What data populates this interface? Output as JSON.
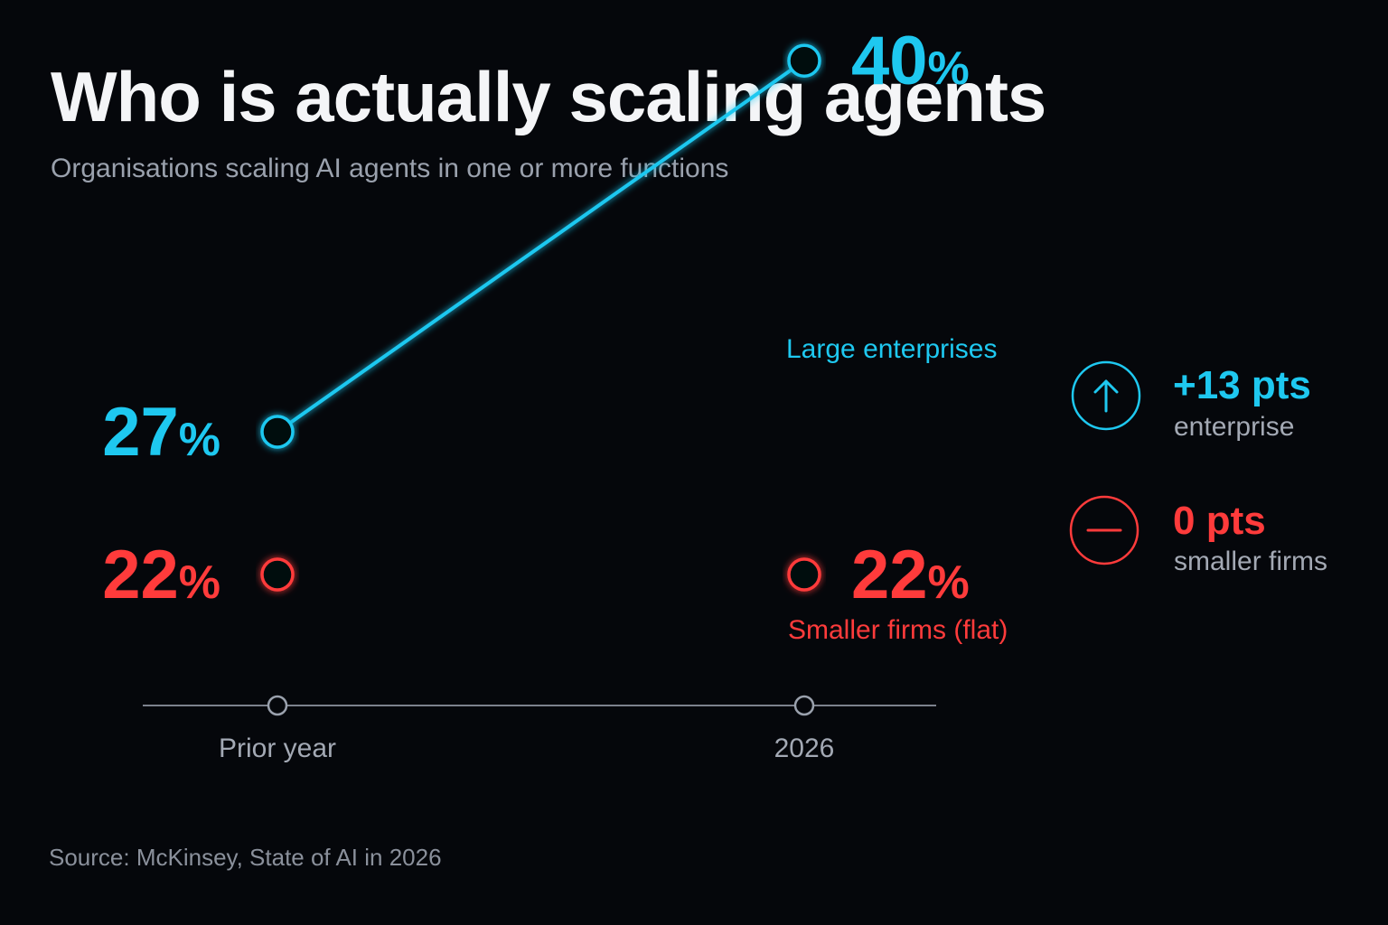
{
  "title": "Who is actually scaling agents",
  "subtitle": "Organisations scaling AI agents in one or more functions",
  "source": "Source: McKinsey, State of AI in 2026",
  "colors": {
    "enterprise": "#1ec8f0",
    "smaller": "#ff3b3b",
    "axis": "#8a909b",
    "text": "#f4f5f7",
    "muted": "#a3a9b4"
  },
  "chart_data": {
    "type": "line",
    "x": [
      "Prior year",
      "2026"
    ],
    "unit": "%",
    "series": [
      {
        "name": "Large enterprises",
        "values": [
          27,
          40
        ],
        "labels": [
          "27",
          "40"
        ],
        "color": "#1ec8f0",
        "dashed": false
      },
      {
        "name": "Smaller firms (flat)",
        "values": [
          22,
          22
        ],
        "labels": [
          "22",
          "22"
        ],
        "color": "#ff3b3b",
        "dashed": true
      }
    ],
    "grid": false
  },
  "stats": [
    {
      "icon": "arrow-up-icon",
      "value": "+13 pts",
      "label": "enterprise",
      "color": "#1ec8f0"
    },
    {
      "icon": "minus-icon",
      "value": "0 pts",
      "label": "smaller firms",
      "color": "#ff3b3b"
    }
  ]
}
